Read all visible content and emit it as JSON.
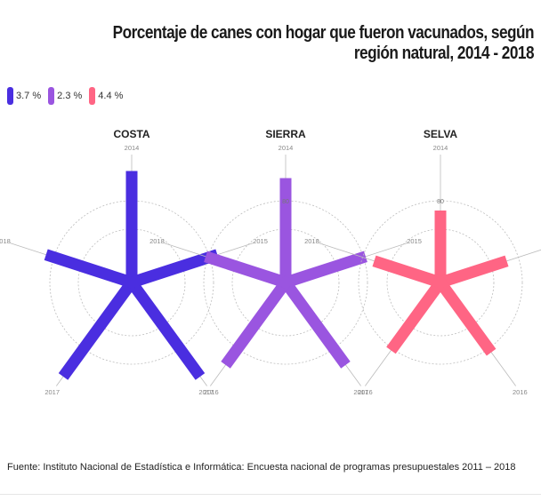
{
  "title": "Porcentaje de canes con hogar que fueron vacunados, según región natural, 2014 - 2018",
  "legend": [
    {
      "label": "3.7 %",
      "color": "#4a2ee0"
    },
    {
      "label": "2.3 %",
      "color": "#9a55e0"
    },
    {
      "label": "4.4 %",
      "color": "#ff6584"
    }
  ],
  "footer": "Fuente: Instituto Nacional de Estadística e Informática: Encuesta nacional de programas presupuestales 2011 – 2018",
  "chart_data": [
    {
      "type": "radial-bar",
      "title": "COSTA",
      "color": "#4a2ee0",
      "categories": [
        "2014",
        "2015",
        "2016",
        "2017",
        "2018"
      ],
      "values": [
        93,
        75,
        97,
        97,
        75
      ],
      "axis_max": 100
    },
    {
      "type": "radial-bar",
      "title": "SIERRA",
      "color": "#9a55e0",
      "categories": [
        "2014",
        "2015",
        "2016",
        "2017",
        "2018"
      ],
      "values": [
        87,
        70,
        85,
        85,
        70
      ],
      "axis_max": 100,
      "tick_label": "80"
    },
    {
      "type": "radial-bar",
      "title": "SELVA",
      "color": "#ff6584",
      "categories": [
        "2014",
        "2015",
        "2016",
        "2017",
        "2018"
      ],
      "values": [
        60,
        58,
        72,
        70,
        58
      ],
      "axis_max": 100,
      "tick_label": "80"
    }
  ]
}
